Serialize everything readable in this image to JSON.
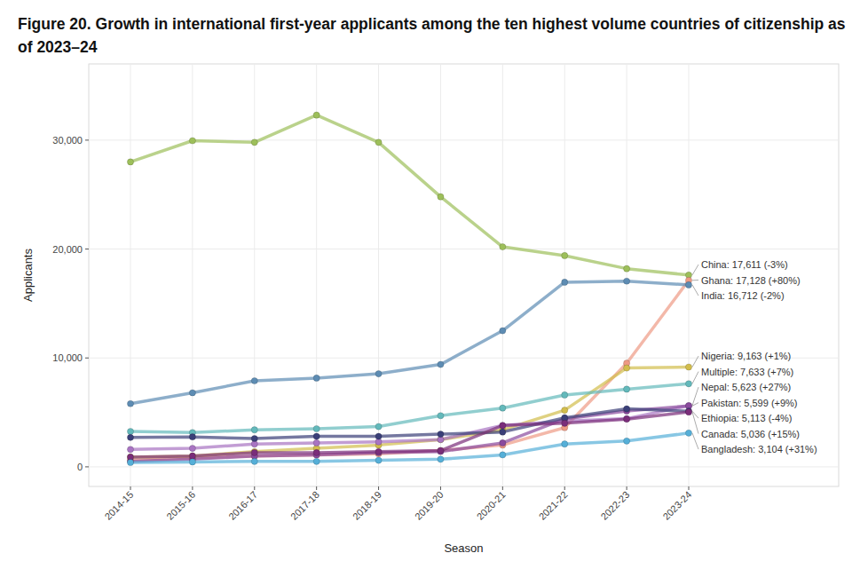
{
  "chart_data": {
    "type": "line",
    "title": "Figure 20. Growth in international first-year applicants among the ten highest volume countries of citizenship as of 2023–24",
    "x_label": "Season",
    "y_label": "Applicants",
    "categories": [
      "2014-15",
      "2015-16",
      "2016-17",
      "2017-18",
      "2018-19",
      "2019-20",
      "2020-21",
      "2021-22",
      "2022-23",
      "2023-24"
    ],
    "ylim": [
      -1800,
      37000
    ],
    "yticks": [
      0,
      {
        "value": 10000,
        "label": "10,000"
      },
      {
        "value": 20000,
        "label": "20,000"
      },
      {
        "value": 30000,
        "label": "30,000"
      }
    ],
    "grid": true,
    "marker": "circle",
    "series": [
      {
        "name": "China: 17,611 (-3%)",
        "color": "#9dbf5a",
        "values": [
          28000,
          29950,
          29800,
          32300,
          29800,
          24800,
          20200,
          19400,
          18200,
          17611
        ]
      },
      {
        "name": "Ghana: 17,128 (+80%)",
        "color": "#ee9a84",
        "values": [
          600,
          800,
          1000,
          1100,
          1200,
          1500,
          2000,
          3600,
          9516,
          17128
        ]
      },
      {
        "name": "India: 16,712 (-2%)",
        "color": "#5d8cb3",
        "values": [
          5800,
          6800,
          7900,
          8150,
          8550,
          9400,
          12500,
          16950,
          17050,
          16712
        ]
      },
      {
        "name": "Nigeria: 9,163 (+1%)",
        "color": "#d2bd4c",
        "values": [
          900,
          1000,
          1400,
          1700,
          2000,
          2500,
          3400,
          5200,
          9072,
          9163
        ]
      },
      {
        "name": "Multiple: 7,633 (+7%)",
        "color": "#63b9bb",
        "values": [
          3250,
          3150,
          3400,
          3500,
          3700,
          4700,
          5400,
          6600,
          7134,
          7633
        ]
      },
      {
        "name": "Nepal: 5,623 (+27%)",
        "color": "#a874c2",
        "values": [
          1600,
          1700,
          2100,
          2200,
          2300,
          2500,
          3800,
          4200,
          4428,
          5623
        ]
      },
      {
        "name": "Pakistan: 5,599 (+9%)",
        "color": "#8a4a9e",
        "values": [
          500,
          700,
          1000,
          1100,
          1300,
          1400,
          2200,
          4400,
          5137,
          5599
        ]
      },
      {
        "name": "Ethiopia: 5,113 (-4%)",
        "color": "#3a3f78",
        "values": [
          2700,
          2750,
          2600,
          2800,
          2800,
          3000,
          3200,
          4500,
          5326,
          5113
        ]
      },
      {
        "name": "Canada: 5,036 (+15%)",
        "color": "#7a2d7a",
        "values": [
          900,
          1000,
          1300,
          1300,
          1400,
          1500,
          3800,
          4000,
          4379,
          5036
        ]
      },
      {
        "name": "Bangladesh: 3,104 (+31%)",
        "color": "#55afd8",
        "values": [
          400,
          450,
          500,
          500,
          600,
          700,
          1100,
          2100,
          2369,
          3104
        ]
      }
    ]
  }
}
